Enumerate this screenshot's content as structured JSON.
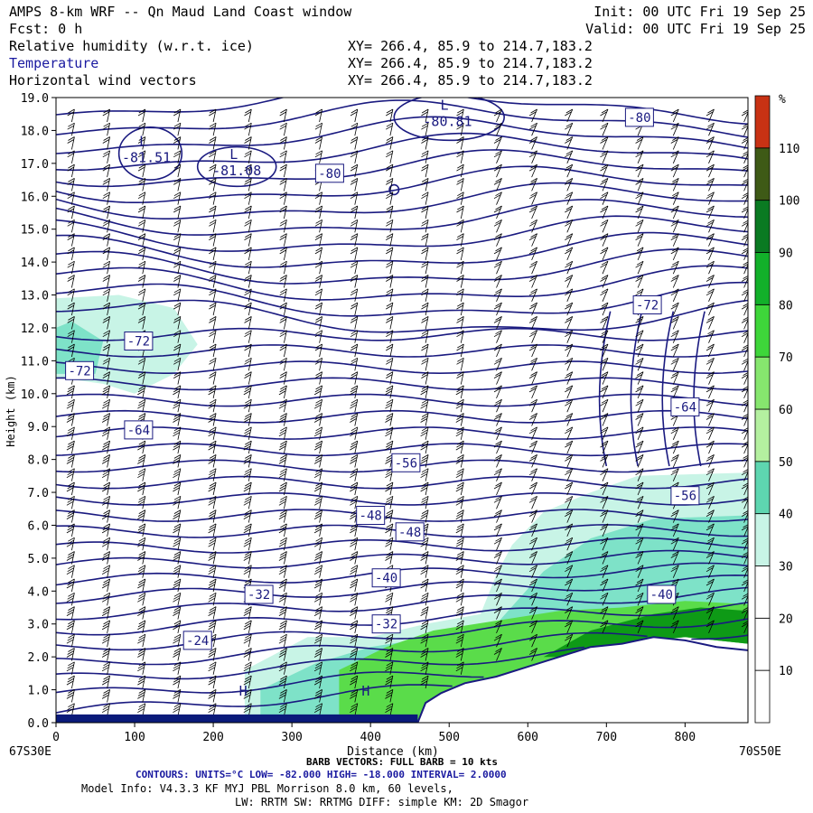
{
  "header": {
    "title": "AMPS 8-km WRF -- Qn Maud Land Coast window",
    "init": "Init: 00 UTC Fri 19 Sep 25",
    "fcst": "Fcst:    0 h",
    "valid": "Valid: 00 UTC Fri 19 Sep 25",
    "fields": [
      {
        "name": "Relative humidity (w.r.t. ice)",
        "xy": "XY= 266.4, 85.9 to 214.7,183.2",
        "color": "#000000"
      },
      {
        "name": "Temperature",
        "xy": "XY= 266.4, 85.9 to 214.7,183.2",
        "color": "#1a1aa0"
      },
      {
        "name": "Horizontal wind vectors",
        "xy": "XY= 266.4, 85.9 to 214.7,183.2",
        "color": "#000000"
      }
    ]
  },
  "footer": {
    "barb": "BARB VECTORS: FULL BARB = 10 kts",
    "contours": "CONTOURS: UNITS=°C LOW= -82.000      HIGH= -18.000      INTERVAL=   2.0000",
    "model1": "Model Info: V4.3.3   KF     MYJ PBL  Morrison        8.0 km,  60 levels,",
    "model2": "LW: RRTM SW: RRTMG   DIFF: simple KM: 2D Smagor",
    "left_loc": "67S30E",
    "right_loc": "70S50E"
  },
  "chart_data": {
    "type": "contour",
    "xlabel": "Distance (km)",
    "ylabel": "Height (km)",
    "xlim": [
      0,
      880
    ],
    "ylim": [
      0,
      19
    ],
    "x_ticks": [
      0,
      100,
      200,
      300,
      400,
      500,
      600,
      700,
      800
    ],
    "y_ticks": [
      "0.0",
      "1.0",
      "2.0",
      "3.0",
      "4.0",
      "5.0",
      "6.0",
      "7.0",
      "8.0",
      "9.0",
      "10.0",
      "11.0",
      "12.0",
      "13.0",
      "14.0",
      "15.0",
      "16.0",
      "17.0",
      "18.0",
      "19.0"
    ],
    "colorbar": {
      "unit": "%",
      "labels": [
        10,
        20,
        30,
        40,
        50,
        60,
        70,
        80,
        90,
        100,
        110
      ],
      "colors": [
        "#ffffff",
        "#ffffff",
        "#ffffff",
        "#d6f7f0",
        "#a8eedd",
        "#7ee2c8",
        "#5ed6b0",
        "#b4f0a0",
        "#86e66e",
        "#5adc4a",
        "#2ec82a",
        "#0e9a16",
        "#0a6e1a",
        "#3e5a16",
        "#c83214"
      ]
    },
    "temperature_contours": {
      "units": "°C",
      "low": -82,
      "high": -18,
      "interval": 2,
      "labels": [
        {
          "text": "-80",
          "x": 742,
          "y": 18.4
        },
        {
          "text": "-80",
          "x": 348,
          "y": 16.7
        },
        {
          "text": "-72",
          "x": 752,
          "y": 12.7
        },
        {
          "text": "-72",
          "x": 105,
          "y": 11.6
        },
        {
          "text": "-72",
          "x": 30,
          "y": 10.7
        },
        {
          "text": "-64",
          "x": 800,
          "y": 9.6
        },
        {
          "text": "-64",
          "x": 105,
          "y": 8.9
        },
        {
          "text": "-56",
          "x": 445,
          "y": 7.9
        },
        {
          "text": "-56",
          "x": 800,
          "y": 6.9
        },
        {
          "text": "-48",
          "x": 400,
          "y": 6.3
        },
        {
          "text": "-48",
          "x": 450,
          "y": 5.8
        },
        {
          "text": "-40",
          "x": 420,
          "y": 4.4
        },
        {
          "text": "-40",
          "x": 770,
          "y": 3.9
        },
        {
          "text": "-32",
          "x": 258,
          "y": 3.9
        },
        {
          "text": "-32",
          "x": 420,
          "y": 3.0
        },
        {
          "text": "-24",
          "x": 180,
          "y": 2.5
        }
      ],
      "extrema": [
        {
          "kind": "L",
          "value": "-80.81",
          "x": 498,
          "y": 18.3
        },
        {
          "kind": "L",
          "value": "-81.51",
          "x": 115,
          "y": 17.2
        },
        {
          "kind": "L",
          "value": "-81.08",
          "x": 230,
          "y": 16.8
        },
        {
          "kind": "H",
          "value": "",
          "x": 242,
          "y": 0.5
        },
        {
          "kind": "H",
          "value": "",
          "x": 398,
          "y": 0.5
        }
      ]
    },
    "terrain": [
      {
        "x": 460,
        "y": 0.0
      },
      {
        "x": 470,
        "y": 0.6
      },
      {
        "x": 490,
        "y": 0.9
      },
      {
        "x": 520,
        "y": 1.2
      },
      {
        "x": 560,
        "y": 1.4
      },
      {
        "x": 600,
        "y": 1.7
      },
      {
        "x": 640,
        "y": 2.0
      },
      {
        "x": 680,
        "y": 2.3
      },
      {
        "x": 720,
        "y": 2.4
      },
      {
        "x": 760,
        "y": 2.6
      },
      {
        "x": 800,
        "y": 2.5
      },
      {
        "x": 840,
        "y": 2.3
      },
      {
        "x": 880,
        "y": 2.2
      }
    ]
  },
  "colors": {
    "contour": "#1a1a80",
    "barb": "#000000",
    "rh_light": "#c8f4e6",
    "rh_mid": "#7ee2c8",
    "rh_green": "#5adc4a",
    "rh_dark": "#0e9a16"
  }
}
